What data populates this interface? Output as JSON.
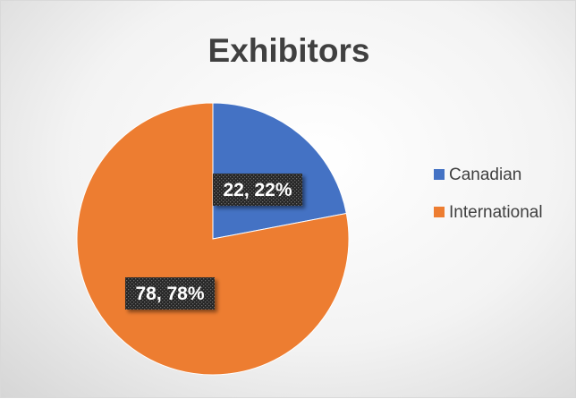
{
  "chart_data": {
    "type": "pie",
    "title": "Exhibitors",
    "categories": [
      "Canadian",
      "International"
    ],
    "values": [
      22,
      78
    ],
    "percentages": [
      "22%",
      "78%"
    ],
    "data_labels": [
      "22, 22%",
      "78, 78%"
    ],
    "colors": [
      "#4472c4",
      "#ed7d31"
    ],
    "legend_position": "right"
  }
}
